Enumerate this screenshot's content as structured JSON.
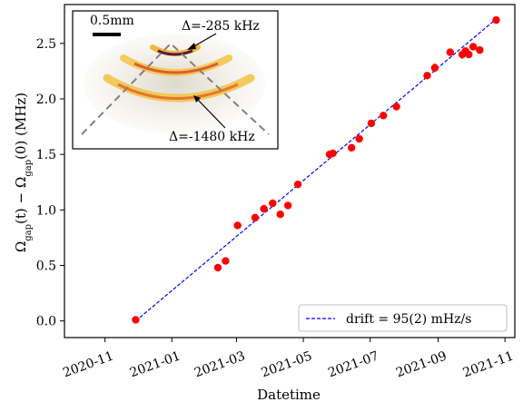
{
  "chart_data": {
    "type": "scatter",
    "title": "",
    "xlabel": "Datetime",
    "ylabel": "Ω_gap(t) − Ω_gap(0)  (MHz)",
    "ylabel_parts": {
      "lead": "Ω",
      "sub1": "gap",
      "mid": "(t) − Ω",
      "sub2": "gap",
      "tail": "(0)  (MHz)"
    },
    "xlim": [
      "2020-09-25",
      "2021-11-10"
    ],
    "ylim": [
      -0.15,
      2.85
    ],
    "x_ticks": [
      "2020-11-01",
      "2021-01-01",
      "2021-03-01",
      "2021-05-01",
      "2021-07-01",
      "2021-09-01",
      "2021-11-01"
    ],
    "x_tick_labels": [
      "2020-11",
      "2021-01",
      "2021-03",
      "2021-05",
      "2021-07",
      "2021-09",
      "2021-11"
    ],
    "y_ticks": [
      0.0,
      0.5,
      1.0,
      1.5,
      2.0,
      2.5
    ],
    "y_tick_labels": [
      "0.0",
      "0.5",
      "1.0",
      "1.5",
      "2.0",
      "2.5"
    ],
    "grid": false,
    "legend_position": "bottom-right",
    "series": [
      {
        "type": "scatter",
        "color": "#ff0000",
        "points": [
          {
            "x": "2020-11-29",
            "y": 0.01,
            "err": 0.0
          },
          {
            "x": "2021-02-12",
            "y": 0.48,
            "err": 0.0
          },
          {
            "x": "2021-02-19",
            "y": 0.54,
            "err": 0.0
          },
          {
            "x": "2021-03-02",
            "y": 0.86,
            "err": 0.0
          },
          {
            "x": "2021-03-18",
            "y": 0.93,
            "err": 0.0
          },
          {
            "x": "2021-03-26",
            "y": 1.01,
            "err": 0.0
          },
          {
            "x": "2021-04-03",
            "y": 1.06,
            "err": 0.0
          },
          {
            "x": "2021-04-10",
            "y": 0.96,
            "err": 0.0
          },
          {
            "x": "2021-04-17",
            "y": 1.04,
            "err": 0.0
          },
          {
            "x": "2021-04-26",
            "y": 1.23,
            "err": 0.0
          },
          {
            "x": "2021-05-25",
            "y": 1.5,
            "err": 0.0
          },
          {
            "x": "2021-05-28",
            "y": 1.51,
            "err": 0.0
          },
          {
            "x": "2021-06-14",
            "y": 1.56,
            "err": 0.0
          },
          {
            "x": "2021-06-21",
            "y": 1.64,
            "err": 0.0
          },
          {
            "x": "2021-07-02",
            "y": 1.78,
            "err": 0.0
          },
          {
            "x": "2021-07-13",
            "y": 1.85,
            "err": 0.0
          },
          {
            "x": "2021-07-25",
            "y": 1.93,
            "err": 0.0
          },
          {
            "x": "2021-08-22",
            "y": 2.21,
            "err": 0.0
          },
          {
            "x": "2021-08-29",
            "y": 2.28,
            "err": 0.04
          },
          {
            "x": "2021-09-12",
            "y": 2.42,
            "err": 0.0
          },
          {
            "x": "2021-09-23",
            "y": 2.4,
            "err": 0.04
          },
          {
            "x": "2021-09-26",
            "y": 2.43,
            "err": 0.0
          },
          {
            "x": "2021-09-29",
            "y": 2.4,
            "err": 0.0
          },
          {
            "x": "2021-10-03",
            "y": 2.47,
            "err": 0.0
          },
          {
            "x": "2021-10-09",
            "y": 2.44,
            "err": 0.0
          },
          {
            "x": "2021-10-24",
            "y": 2.71,
            "err": 0.0
          }
        ]
      },
      {
        "type": "line",
        "name": "drift = 95(2) mHz/s",
        "color": "#0000ff",
        "dash": "dashed",
        "points": [
          {
            "x": "2020-11-29",
            "y": 0.0
          },
          {
            "x": "2021-10-24",
            "y": 2.72
          }
        ]
      }
    ]
  },
  "inset": {
    "scale_label": "0.5mm",
    "annotation_top": "Δ=-285 kHz",
    "annotation_bottom": "Δ=-1480 kHz"
  }
}
